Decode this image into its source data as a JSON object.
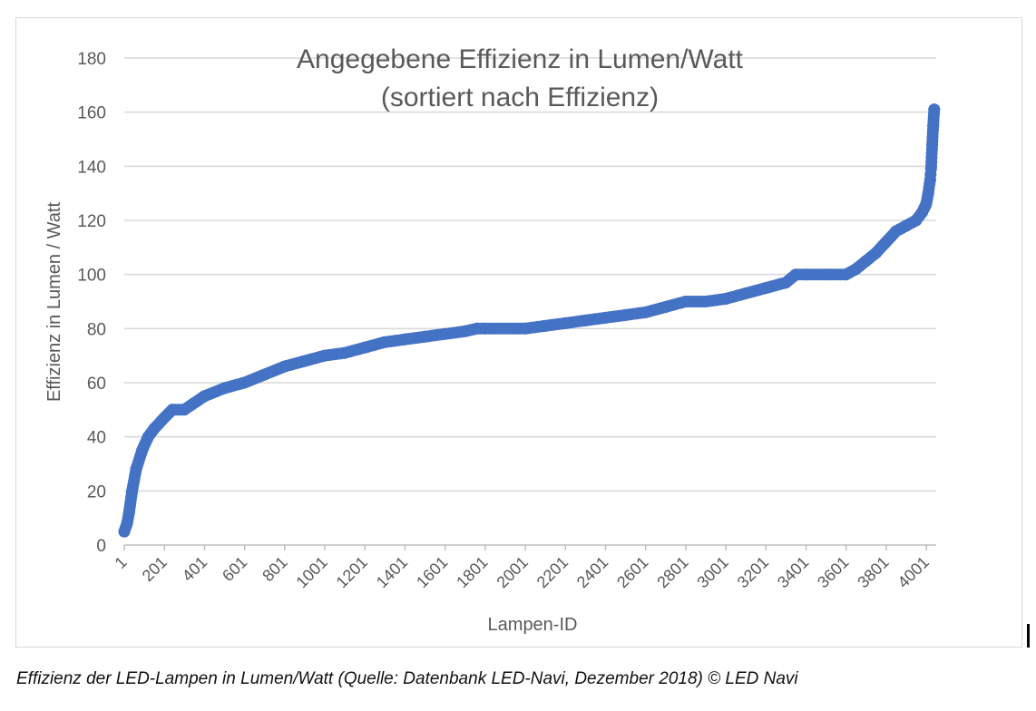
{
  "chart_data": {
    "type": "scatter",
    "title": "Angegebene Effizienz in Lumen/Watt",
    "subtitle": "(sortiert nach Effizienz)",
    "xlabel": "Lampen-ID",
    "ylabel": "Effizienz in Lumen / Watt",
    "ylim": [
      0,
      180
    ],
    "yticks": [
      0,
      20,
      40,
      60,
      80,
      100,
      120,
      140,
      160,
      180
    ],
    "xlim": [
      1,
      4050
    ],
    "xticks": [
      "1",
      "201",
      "401",
      "601",
      "801",
      "1001",
      "1201",
      "1401",
      "1601",
      "1801",
      "2001",
      "2201",
      "2401",
      "2601",
      "2801",
      "3001",
      "3201",
      "3401",
      "3601",
      "3801",
      "4001"
    ],
    "grid": true,
    "legend": "none",
    "series_color": "#4472c4",
    "curve_points": {
      "x": [
        1,
        15,
        25,
        40,
        60,
        90,
        120,
        150,
        200,
        240,
        300,
        400,
        500,
        600,
        700,
        800,
        900,
        1000,
        1100,
        1200,
        1300,
        1400,
        1500,
        1600,
        1700,
        1760,
        1800,
        2000,
        2100,
        2200,
        2300,
        2400,
        2500,
        2600,
        2700,
        2800,
        2900,
        3000,
        3100,
        3200,
        3300,
        3350,
        3400,
        3500,
        3600,
        3650,
        3700,
        3750,
        3800,
        3850,
        3900,
        3950,
        3980,
        4000,
        4010,
        4020,
        4025,
        4030,
        4035,
        4040
      ],
      "y": [
        5,
        8,
        12,
        20,
        28,
        35,
        40,
        43,
        47,
        50,
        50,
        55,
        58,
        60,
        63,
        66,
        68,
        70,
        71,
        73,
        75,
        76,
        77,
        78,
        79,
        80,
        80,
        80,
        81,
        82,
        83,
        84,
        85,
        86,
        88,
        90,
        90,
        91,
        93,
        95,
        97,
        100,
        100,
        100,
        100,
        102,
        105,
        108,
        112,
        116,
        118,
        120,
        123,
        126,
        130,
        135,
        140,
        148,
        155,
        161
      ]
    }
  },
  "caption": "Effizienz der LED-Lampen in Lumen/Watt (Quelle: Datenbank LED-Navi, Dezember 2018) © LED Navi"
}
